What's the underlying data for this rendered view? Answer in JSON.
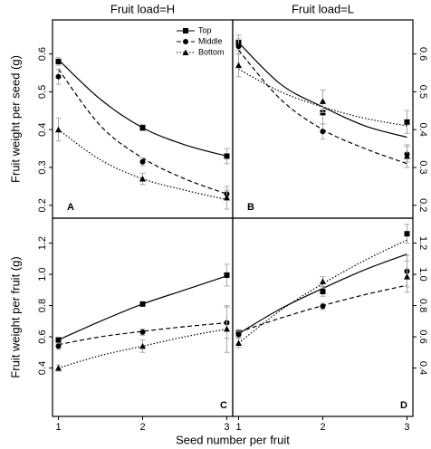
{
  "xlabel": "Seed number per fruit",
  "chart_data": [
    {
      "type": "scatter",
      "title": "Fruit load=H",
      "ylabel": "Fruit weight per seed (g)",
      "panel_label": "A",
      "x": [
        1,
        2,
        3
      ],
      "xlim": [
        0.93,
        3.07
      ],
      "xticks": [
        1,
        2,
        3
      ],
      "ylim": [
        0.166,
        0.69
      ],
      "yticks": [
        0.2,
        0.3,
        0.4,
        0.5,
        0.6
      ],
      "series": [
        {
          "name": "Top",
          "color": "#000000",
          "marker": "square",
          "dash": "solid",
          "values": [
            0.58,
            0.405,
            0.33
          ],
          "errors": [
            0.01,
            0.008,
            0.02
          ],
          "fit": {
            "x": [
              1,
              1.5,
              2,
              2.5,
              3
            ],
            "values": [
              0.585,
              0.48,
              0.405,
              0.36,
              0.33
            ]
          }
        },
        {
          "name": "Middle",
          "color": "#000000",
          "marker": "circle",
          "dash": "dashed",
          "values": [
            0.54,
            0.315,
            0.23
          ],
          "errors": [
            0.02,
            0.01,
            0.01
          ],
          "fit": {
            "x": [
              1,
              1.5,
              2,
              2.5,
              3
            ],
            "values": [
              0.56,
              0.41,
              0.325,
              0.27,
              0.23
            ]
          }
        },
        {
          "name": "Bottom",
          "color": "#000000",
          "marker": "triangle",
          "dash": "dotted",
          "values": [
            0.4,
            0.27,
            0.22
          ],
          "errors": [
            0.03,
            0.015,
            0.03
          ],
          "fit": {
            "x": [
              1,
              1.5,
              2,
              2.5,
              3
            ],
            "values": [
              0.4,
              0.32,
              0.27,
              0.24,
              0.215
            ]
          }
        }
      ]
    },
    {
      "type": "scatter",
      "title": "Fruit load=L",
      "panel_label": "B",
      "x": [
        1,
        2,
        3
      ],
      "xlim": [
        0.93,
        3.07
      ],
      "xticks": [
        1,
        2,
        3
      ],
      "ylim": [
        0.166,
        0.69
      ],
      "yticks": [
        0.2,
        0.3,
        0.4,
        0.5,
        0.6
      ],
      "series": [
        {
          "color": "#000000",
          "marker": "square",
          "dash": "solid",
          "values": [
            0.63,
            0.445,
            0.42
          ],
          "errors": [
            0.02,
            0.03,
            0.03
          ],
          "fit": {
            "x": [
              1,
              1.5,
              2,
              2.5,
              3
            ],
            "values": [
              0.63,
              0.52,
              0.46,
              0.41,
              0.38
            ]
          }
        },
        {
          "color": "#000000",
          "marker": "circle",
          "dash": "dashed",
          "values": [
            0.62,
            0.395,
            0.335
          ],
          "errors": [
            0.02,
            0.02,
            0.02
          ],
          "fit": {
            "x": [
              1,
              1.5,
              2,
              2.5,
              3
            ],
            "values": [
              0.61,
              0.48,
              0.4,
              0.35,
              0.31
            ]
          }
        },
        {
          "color": "#000000",
          "marker": "triangle",
          "dash": "dotted",
          "values": [
            0.57,
            0.475,
            0.33
          ],
          "errors": [
            0.03,
            0.03,
            0.03
          ],
          "fit": {
            "x": [
              1,
              1.5,
              2,
              2.5,
              3
            ],
            "values": [
              0.56,
              0.5,
              0.46,
              0.43,
              0.41
            ]
          }
        }
      ]
    },
    {
      "type": "scatter",
      "ylabel": "Fruit weight per fruit (g)",
      "panel_label": "C",
      "x": [
        1,
        2,
        3
      ],
      "xlim": [
        0.93,
        3.07
      ],
      "xticks": [
        1,
        2,
        3
      ],
      "ylim": [
        0.09,
        1.36
      ],
      "yticks": [
        0.4,
        0.6,
        0.8,
        {
          "value": 1,
          "label": "1.0"
        },
        1.2
      ],
      "series": [
        {
          "color": "#000000",
          "marker": "square",
          "dash": "solid",
          "values": [
            0.58,
            0.81,
            0.995
          ],
          "errors": [
            0.01,
            0.01,
            0.07
          ],
          "fit": {
            "x": [
              1,
              1.5,
              2,
              2.5,
              3
            ],
            "values": [
              0.58,
              0.7,
              0.81,
              0.9,
              0.99
            ]
          }
        },
        {
          "color": "#000000",
          "marker": "circle",
          "dash": "dashed",
          "values": [
            0.54,
            0.63,
            0.69
          ],
          "errors": [
            0.02,
            0.02,
            0.1
          ],
          "fit": {
            "x": [
              1,
              1.5,
              2,
              2.5,
              3
            ],
            "values": [
              0.55,
              0.6,
              0.635,
              0.665,
              0.69
            ]
          }
        },
        {
          "color": "#000000",
          "marker": "triangle",
          "dash": "dotted",
          "values": [
            0.4,
            0.54,
            0.65
          ],
          "errors": [
            0.02,
            0.04,
            0.15
          ],
          "fit": {
            "x": [
              1,
              1.5,
              2,
              2.5,
              3
            ],
            "values": [
              0.4,
              0.48,
              0.54,
              0.6,
              0.65
            ]
          }
        }
      ]
    },
    {
      "type": "scatter",
      "panel_label": "D",
      "x": [
        1,
        2,
        3
      ],
      "xlim": [
        0.93,
        3.07
      ],
      "xticks": [
        1,
        2,
        3
      ],
      "ylim": [
        0.09,
        1.36
      ],
      "yticks": [
        0.4,
        0.6,
        0.8,
        {
          "value": 1,
          "label": "1.0"
        },
        1.2
      ],
      "series": [
        {
          "color": "#000000",
          "marker": "square",
          "dash": "solid",
          "values": [
            0.625,
            0.89,
            1.26
          ],
          "errors": [
            0.02,
            0.03,
            0.06
          ],
          "fit": {
            "x": [
              1,
              1.5,
              2,
              2.5,
              3
            ],
            "values": [
              0.62,
              0.78,
              0.91,
              1.03,
              1.13
            ]
          }
        },
        {
          "color": "#000000",
          "marker": "circle",
          "dash": "dashed",
          "values": [
            0.615,
            0.795,
            1.02
          ],
          "errors": [
            0.02,
            0.02,
            0.1
          ],
          "fit": {
            "x": [
              1,
              1.5,
              2,
              2.5,
              3
            ],
            "values": [
              0.63,
              0.72,
              0.8,
              0.87,
              0.93
            ]
          }
        },
        {
          "color": "#000000",
          "marker": "triangle",
          "dash": "dotted",
          "values": [
            0.56,
            0.955,
            0.985
          ],
          "errors": [
            0.03,
            0.03,
            0.1
          ],
          "fit": {
            "x": [
              1,
              1.5,
              2,
              2.5,
              3
            ],
            "values": [
              0.56,
              0.77,
              0.94,
              1.09,
              1.22
            ]
          }
        }
      ]
    }
  ]
}
